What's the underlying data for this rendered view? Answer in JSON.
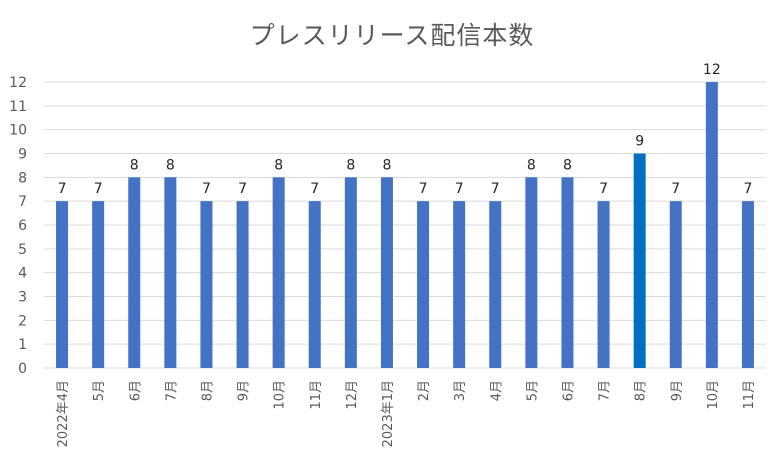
{
  "chart_data": {
    "type": "bar",
    "title": "プレスリリース配信本数",
    "xlabel": "",
    "ylabel": "",
    "categories": [
      "2022年4月",
      "5月",
      "6月",
      "7月",
      "8月",
      "9月",
      "10月",
      "11月",
      "12月",
      "2023年1月",
      "2月",
      "3月",
      "4月",
      "5月",
      "6月",
      "7月",
      "8月",
      "9月",
      "10月",
      "11月"
    ],
    "values": [
      7,
      7,
      8,
      8,
      7,
      7,
      8,
      7,
      8,
      8,
      7,
      7,
      7,
      8,
      8,
      7,
      9,
      7,
      12,
      7
    ],
    "ylim": [
      0,
      12
    ],
    "yticks": [
      0,
      1,
      2,
      3,
      4,
      5,
      6,
      7,
      8,
      9,
      10,
      11,
      12
    ],
    "grid": true,
    "legend": "none",
    "colors": {
      "bar": "#4472C4",
      "highlight_bar": "#0070C0",
      "grid": "#D9D9D9"
    },
    "highlight_index": 16
  }
}
